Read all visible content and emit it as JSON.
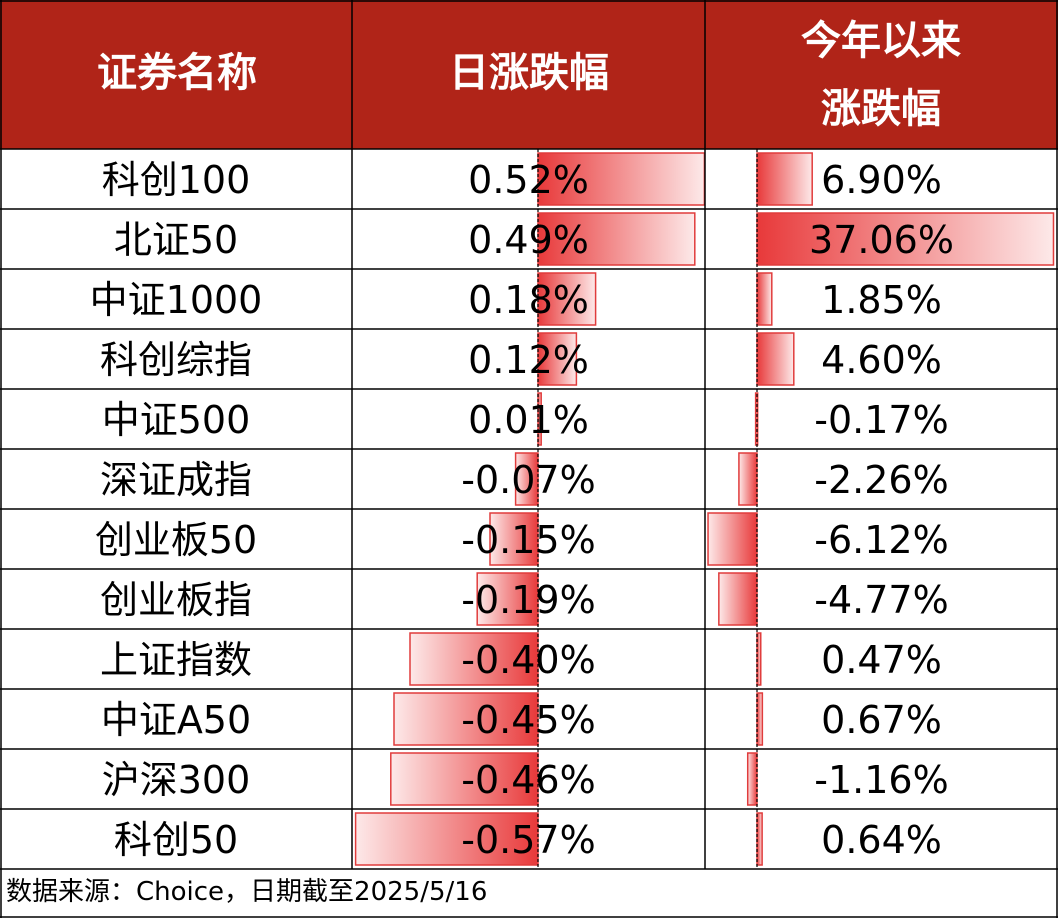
{
  "headers": {
    "name": "证券名称",
    "daily": "日涨跌幅",
    "ytd_line1": "今年以来",
    "ytd_line2": "涨跌幅"
  },
  "source_note": "数据来源：Choice，日期截至2025/5/16",
  "colors": {
    "header_bg": "#b02418",
    "bar_solid": "#e8393a",
    "bar_light": "#fbe6e6",
    "bar_border": "#e03c3c",
    "grid": "#000000"
  },
  "chart_data": {
    "type": "table",
    "columns": [
      "证券名称",
      "日涨跌幅",
      "今年以来涨跌幅"
    ],
    "rows": [
      {
        "name": "科创100",
        "daily": 0.52,
        "daily_label": "0.52%",
        "ytd": 6.9,
        "ytd_label": "6.90%"
      },
      {
        "name": "北证50",
        "daily": 0.49,
        "daily_label": "0.49%",
        "ytd": 37.06,
        "ytd_label": "37.06%"
      },
      {
        "name": "中证1000",
        "daily": 0.18,
        "daily_label": "0.18%",
        "ytd": 1.85,
        "ytd_label": "1.85%"
      },
      {
        "name": "科创综指",
        "daily": 0.12,
        "daily_label": "0.12%",
        "ytd": 4.6,
        "ytd_label": "4.60%"
      },
      {
        "name": "中证500",
        "daily": 0.01,
        "daily_label": "0.01%",
        "ytd": -0.17,
        "ytd_label": "-0.17%"
      },
      {
        "name": "深证成指",
        "daily": -0.07,
        "daily_label": "-0.07%",
        "ytd": -2.26,
        "ytd_label": "-2.26%"
      },
      {
        "name": "创业板50",
        "daily": -0.15,
        "daily_label": "-0.15%",
        "ytd": -6.12,
        "ytd_label": "-6.12%"
      },
      {
        "name": "创业板指",
        "daily": -0.19,
        "daily_label": "-0.19%",
        "ytd": -4.77,
        "ytd_label": "-4.77%"
      },
      {
        "name": "上证指数",
        "daily": -0.4,
        "daily_label": "-0.40%",
        "ytd": 0.47,
        "ytd_label": "0.47%"
      },
      {
        "name": "中证A50",
        "daily": -0.45,
        "daily_label": "-0.45%",
        "ytd": 0.67,
        "ytd_label": "0.67%"
      },
      {
        "name": "沪深300",
        "daily": -0.46,
        "daily_label": "-0.46%",
        "ytd": -1.16,
        "ytd_label": "-1.16%"
      },
      {
        "name": "科创50",
        "daily": -0.57,
        "daily_label": "-0.57%",
        "ytd": 0.64,
        "ytd_label": "0.64%"
      }
    ]
  }
}
